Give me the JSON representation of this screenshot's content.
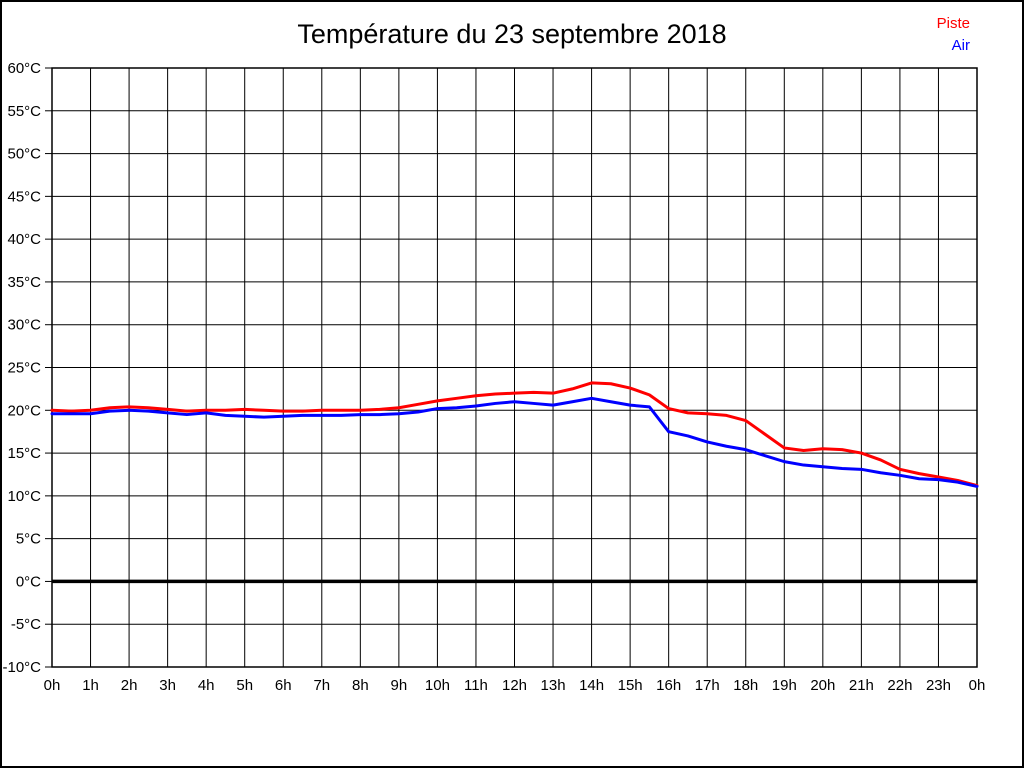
{
  "chart_data": {
    "type": "line",
    "title": "Température du 23 septembre 2018",
    "xlabel": "",
    "ylabel": "",
    "xlim": [
      0,
      24
    ],
    "ylim": [
      -10,
      60
    ],
    "y_tick_step": 5,
    "grid": true,
    "grid_color": "#000000",
    "zero_line": true,
    "legend_position": "top-right",
    "x_ticks": [
      "0h",
      "1h",
      "2h",
      "3h",
      "4h",
      "5h",
      "6h",
      "7h",
      "8h",
      "9h",
      "10h",
      "11h",
      "12h",
      "13h",
      "14h",
      "15h",
      "16h",
      "17h",
      "18h",
      "19h",
      "20h",
      "21h",
      "22h",
      "23h",
      "0h"
    ],
    "y_ticks": [
      "60°C",
      "55°C",
      "50°C",
      "45°C",
      "40°C",
      "35°C",
      "30°C",
      "25°C",
      "20°C",
      "15°C",
      "10°C",
      "5°C",
      "0°C",
      "-5°C",
      "-10°C"
    ],
    "x": [
      0,
      0.5,
      1,
      1.5,
      2,
      2.5,
      3,
      3.5,
      4,
      4.5,
      5,
      5.5,
      6,
      6.5,
      7,
      7.5,
      8,
      8.5,
      9,
      9.5,
      10,
      10.5,
      11,
      11.5,
      12,
      12.5,
      13,
      13.5,
      14,
      14.5,
      15,
      15.5,
      16,
      16.5,
      17,
      17.5,
      18,
      18.5,
      19,
      19.5,
      20,
      20.5,
      21,
      21.5,
      22,
      22.5,
      23,
      23.5,
      24
    ],
    "series": [
      {
        "name": "Piste",
        "color": "#ff0000",
        "values": [
          20.0,
          19.9,
          20.0,
          20.3,
          20.4,
          20.3,
          20.1,
          19.9,
          20.0,
          20.0,
          20.1,
          20.0,
          19.9,
          19.9,
          20.0,
          20.0,
          20.0,
          20.1,
          20.3,
          20.7,
          21.1,
          21.4,
          21.7,
          21.9,
          22.0,
          22.1,
          22.0,
          22.5,
          23.2,
          23.1,
          22.6,
          21.8,
          20.2,
          19.7,
          19.6,
          19.4,
          18.8,
          17.2,
          15.6,
          15.3,
          15.5,
          15.4,
          15.0,
          14.2,
          13.1,
          12.6,
          12.2,
          11.8,
          11.2
        ]
      },
      {
        "name": "Air",
        "color": "#0000ff",
        "values": [
          19.6,
          19.6,
          19.6,
          19.9,
          20.0,
          19.9,
          19.7,
          19.5,
          19.7,
          19.4,
          19.3,
          19.2,
          19.3,
          19.4,
          19.4,
          19.4,
          19.5,
          19.5,
          19.6,
          19.8,
          20.2,
          20.3,
          20.5,
          20.8,
          21.0,
          20.8,
          20.6,
          21.0,
          21.4,
          21.0,
          20.6,
          20.4,
          17.5,
          17.0,
          16.3,
          15.8,
          15.4,
          14.7,
          14.0,
          13.6,
          13.4,
          13.2,
          13.1,
          12.7,
          12.4,
          12.0,
          11.9,
          11.6,
          11.1
        ]
      }
    ]
  }
}
